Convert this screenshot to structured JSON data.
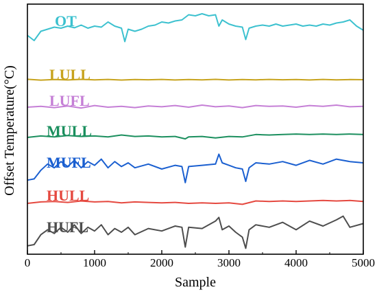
{
  "chart_data": {
    "type": "line",
    "title": "",
    "xlabel": "Sample",
    "ylabel": "Offset Temperature(°C)",
    "xlim": [
      0,
      5000
    ],
    "xticks": [
      0,
      1000,
      2000,
      3000,
      4000,
      5000
    ],
    "grid": false,
    "legend": "inline labels above each series",
    "y_ticks_shown": false,
    "series": [
      {
        "name": "OT",
        "color": "#3cc1cf",
        "x": [
          0,
          100,
          200,
          300,
          400,
          500,
          600,
          700,
          800,
          900,
          1000,
          1100,
          1200,
          1300,
          1400,
          1450,
          1500,
          1600,
          1700,
          1800,
          1900,
          2000,
          2100,
          2200,
          2300,
          2400,
          2500,
          2600,
          2700,
          2800,
          2850,
          2900,
          3000,
          3100,
          3200,
          3250,
          3300,
          3400,
          3500,
          3600,
          3700,
          3800,
          3900,
          4000,
          4100,
          4200,
          4300,
          4400,
          4500,
          4600,
          4700,
          4800,
          4900,
          5000
        ],
        "y": [
          0.55,
          0.3,
          0.75,
          0.85,
          0.95,
          0.9,
          1.0,
          0.92,
          1.05,
          0.9,
          1.0,
          0.95,
          1.2,
          1.0,
          0.9,
          0.25,
          0.85,
          0.75,
          0.85,
          1.0,
          1.05,
          1.2,
          1.15,
          1.25,
          1.3,
          1.55,
          1.5,
          1.6,
          1.5,
          1.55,
          1.0,
          1.3,
          1.1,
          1.0,
          0.95,
          0.35,
          0.9,
          1.0,
          1.05,
          1.0,
          1.1,
          1.0,
          1.05,
          1.1,
          1.0,
          1.05,
          1.0,
          1.1,
          1.05,
          1.15,
          1.2,
          1.3,
          1.0,
          0.8
        ]
      },
      {
        "name": "LULL",
        "color": "#c7a31d",
        "x": [
          0,
          200,
          400,
          600,
          800,
          1000,
          1200,
          1400,
          1600,
          1800,
          2000,
          2200,
          2400,
          2600,
          2800,
          3000,
          3200,
          3400,
          3600,
          3800,
          4000,
          4200,
          4400,
          4600,
          4800,
          5000
        ],
        "y": [
          0.05,
          -0.05,
          0.02,
          -0.03,
          0.04,
          -0.02,
          0.03,
          -0.04,
          0.02,
          -0.01,
          0.03,
          -0.03,
          0.02,
          -0.02,
          0.04,
          -0.03,
          0.02,
          -0.02,
          0.03,
          -0.01,
          0.02,
          -0.03,
          0.03,
          -0.02,
          0.02,
          0.0
        ]
      },
      {
        "name": "LUFL",
        "color": "#c57fd6",
        "x": [
          0,
          200,
          400,
          600,
          800,
          1000,
          1200,
          1400,
          1600,
          1800,
          2000,
          2200,
          2400,
          2600,
          2800,
          3000,
          3200,
          3400,
          3600,
          3800,
          4000,
          4200,
          4400,
          4600,
          4800,
          5000
        ],
        "y": [
          0.0,
          0.1,
          -0.05,
          0.15,
          -0.1,
          0.2,
          0.0,
          0.1,
          -0.05,
          0.15,
          0.05,
          0.2,
          0.0,
          0.25,
          0.05,
          0.15,
          -0.05,
          0.2,
          0.1,
          0.15,
          0.0,
          0.2,
          0.1,
          0.25,
          0.05,
          0.1
        ]
      },
      {
        "name": "MULL",
        "color": "#1b8f5e",
        "x": [
          0,
          200,
          400,
          600,
          800,
          1000,
          1200,
          1400,
          1600,
          1800,
          2000,
          2200,
          2350,
          2400,
          2600,
          2800,
          3000,
          3200,
          3400,
          3600,
          3800,
          4000,
          4200,
          4400,
          4600,
          4800,
          5000
        ],
        "y": [
          0.0,
          0.15,
          0.05,
          0.2,
          0.1,
          0.15,
          0.05,
          0.25,
          0.1,
          0.15,
          0.05,
          0.1,
          -0.15,
          0.05,
          0.1,
          -0.05,
          0.1,
          0.05,
          0.3,
          0.25,
          0.3,
          0.35,
          0.3,
          0.35,
          0.3,
          0.35,
          0.3
        ]
      },
      {
        "name": "MUFL",
        "color": "#1a5fd0",
        "x": [
          0,
          100,
          200,
          300,
          400,
          500,
          600,
          700,
          800,
          900,
          1000,
          1100,
          1200,
          1300,
          1400,
          1500,
          1600,
          1800,
          2000,
          2200,
          2300,
          2350,
          2400,
          2600,
          2800,
          2850,
          2900,
          3000,
          3100,
          3200,
          3250,
          3300,
          3400,
          3600,
          3800,
          4000,
          4200,
          4400,
          4600,
          4800,
          5000
        ],
        "y": [
          -0.9,
          -0.8,
          -0.1,
          0.4,
          0.1,
          0.6,
          0.2,
          0.7,
          0.1,
          0.6,
          0.3,
          0.8,
          0.1,
          0.6,
          0.2,
          0.5,
          0.1,
          0.4,
          0.0,
          0.3,
          0.2,
          -1.1,
          0.2,
          0.3,
          0.4,
          1.2,
          0.5,
          0.3,
          0.1,
          0.0,
          -1.0,
          0.1,
          0.5,
          0.4,
          0.6,
          0.3,
          0.7,
          0.4,
          0.8,
          0.6,
          0.5
        ]
      },
      {
        "name": "HULL",
        "color": "#e5483f",
        "x": [
          0,
          200,
          400,
          600,
          800,
          1000,
          1200,
          1400,
          1600,
          1800,
          2000,
          2200,
          2400,
          2600,
          2800,
          3000,
          3200,
          3400,
          3600,
          3800,
          4000,
          4200,
          4400,
          4600,
          4800,
          5000
        ],
        "y": [
          0.0,
          0.15,
          0.2,
          0.1,
          0.25,
          0.15,
          0.2,
          0.05,
          0.15,
          0.1,
          0.05,
          0.1,
          0.0,
          0.05,
          0.0,
          0.05,
          -0.1,
          0.25,
          0.2,
          0.25,
          0.2,
          0.25,
          0.3,
          0.25,
          0.3,
          0.2
        ]
      },
      {
        "name": "HUFL",
        "color": "#4d4d4d",
        "x": [
          0,
          100,
          200,
          300,
          400,
          500,
          600,
          700,
          800,
          900,
          1000,
          1100,
          1200,
          1300,
          1400,
          1500,
          1600,
          1800,
          2000,
          2200,
          2300,
          2350,
          2400,
          2600,
          2800,
          2850,
          2900,
          3000,
          3100,
          3200,
          3250,
          3300,
          3400,
          3600,
          3800,
          4000,
          4200,
          4400,
          4600,
          4700,
          4800,
          5000
        ],
        "y": [
          -1.1,
          -1.0,
          -0.2,
          0.2,
          -0.1,
          0.4,
          0.0,
          0.6,
          -0.1,
          0.4,
          0.1,
          0.6,
          -0.2,
          0.3,
          0.0,
          0.4,
          -0.2,
          0.3,
          0.1,
          0.5,
          0.4,
          -1.2,
          0.4,
          0.3,
          0.9,
          1.2,
          0.2,
          0.5,
          0.0,
          -0.4,
          -1.3,
          0.2,
          0.6,
          0.4,
          0.8,
          0.2,
          0.9,
          0.5,
          1.0,
          1.3,
          0.4,
          0.7
        ]
      }
    ]
  }
}
